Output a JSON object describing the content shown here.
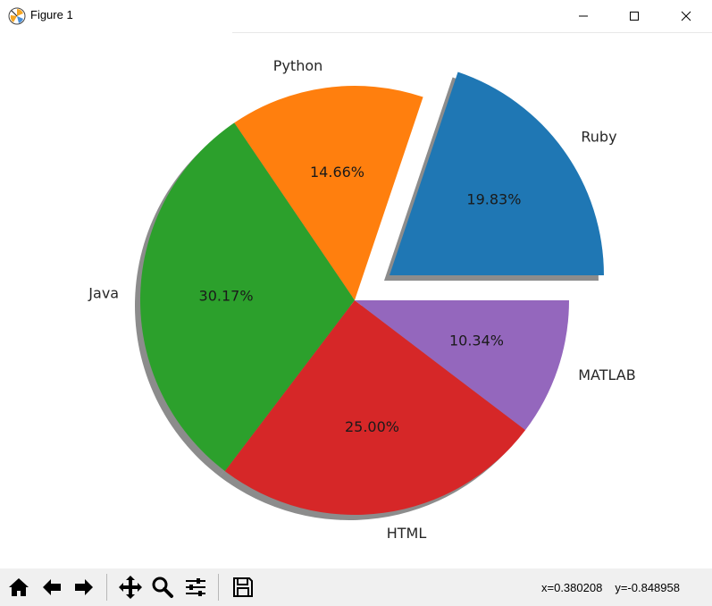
{
  "window": {
    "title": "Figure 1"
  },
  "chart_data": {
    "type": "pie",
    "labels": [
      "Ruby",
      "Python",
      "Java",
      "HTML",
      "MATLAB"
    ],
    "values": [
      19.83,
      14.66,
      30.17,
      25.0,
      10.34
    ],
    "value_labels": [
      "19.83%",
      "14.66%",
      "30.17%",
      "25.00%",
      "10.34%"
    ],
    "colors": [
      "#1f77b4",
      "#ff7f0e",
      "#2ca02c",
      "#d62728",
      "#9467bd"
    ],
    "explode": [
      0.2,
      0,
      0,
      0,
      0
    ],
    "shadow": true,
    "start_angle": 0,
    "counterclockwise": true
  },
  "toolbar": {
    "buttons": [
      "home-icon",
      "back-icon",
      "forward-icon",
      "pan-icon",
      "zoom-icon",
      "configure-icon",
      "save-icon"
    ]
  },
  "status": {
    "x_readout": "x=0.380208",
    "y_readout": "y=-0.848958"
  }
}
